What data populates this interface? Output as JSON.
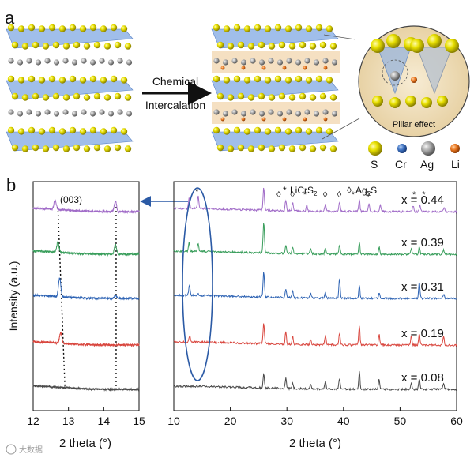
{
  "panel_a": {
    "label": "a",
    "arrow_text_line1": "Chemical",
    "arrow_text_line2": "Intercalation",
    "inset_text": "Pillar effect",
    "legend": [
      {
        "symbol": "S",
        "color": "#e8e000"
      },
      {
        "symbol": "Cr",
        "color": "#3f73c2"
      },
      {
        "symbol": "Ag",
        "color": "#a8a8a8"
      },
      {
        "symbol": "Li",
        "color": "#e8741c"
      }
    ],
    "colors": {
      "sulfur": "#e8e000",
      "chromium_slab": "#8fb3e6",
      "silver": "#a8a8a8",
      "lithium": "#e8741c",
      "inset_bg": "#f1e2c4"
    }
  },
  "panel_b": {
    "label": "b",
    "watermark": "大数据"
  },
  "chart_data": [
    {
      "type": "line",
      "title": "",
      "xlabel": "2 theta (°)",
      "ylabel": "Intensity (a.u.)",
      "xlim": [
        12,
        15
      ],
      "xticks": [
        "12",
        "13",
        "14",
        "15"
      ],
      "annotations": [
        {
          "text": "(003)",
          "x": 12.6
        }
      ],
      "dotted_lines_x": [
        12.7,
        14.35
      ],
      "series": [
        {
          "name": "x = 0.44",
          "color": "#a16cc8",
          "peaks": [
            {
              "x": 12.62,
              "h": 0.5
            },
            {
              "x": 14.33,
              "h": 0.55
            }
          ]
        },
        {
          "name": "x = 0.39",
          "color": "#3a9e5c",
          "peaks": [
            {
              "x": 12.7,
              "h": 0.55
            },
            {
              "x": 14.33,
              "h": 0.5
            }
          ]
        },
        {
          "name": "x = 0.31",
          "color": "#2f64b4",
          "peaks": [
            {
              "x": 12.75,
              "h": 1.0
            },
            {
              "x": 14.33,
              "h": 0.15
            }
          ]
        },
        {
          "name": "x = 0.19",
          "color": "#d9473f",
          "peaks": [
            {
              "x": 12.78,
              "h": 0.55
            }
          ]
        },
        {
          "name": "x = 0.08",
          "color": "#4a4a4a",
          "peaks": []
        }
      ]
    },
    {
      "type": "line",
      "title": "",
      "xlabel": "2 theta (°)",
      "ylabel": "",
      "xlim": [
        10,
        60
      ],
      "xticks": [
        "10",
        "20",
        "30",
        "40",
        "50",
        "60"
      ],
      "legend_markers": [
        {
          "marker": "*",
          "label": "LiCrS",
          "subscript": "2"
        },
        {
          "marker": "◊",
          "label": "Ag",
          "subscript": "2",
          "suffix": "S"
        }
      ],
      "series": [
        {
          "name": "x = 0.44",
          "color": "#a16cc8",
          "peaks": [
            {
              "x": 12.7,
              "h": 0.5
            },
            {
              "x": 14.3,
              "h": 0.6
            },
            {
              "x": 25.9,
              "h": 1.1
            },
            {
              "x": 29.8,
              "h": 0.5
            },
            {
              "x": 31.0,
              "h": 0.4
            },
            {
              "x": 33.5,
              "h": 0.3
            },
            {
              "x": 36.8,
              "h": 0.35
            },
            {
              "x": 39.3,
              "h": 0.45
            },
            {
              "x": 42.8,
              "h": 0.55
            },
            {
              "x": 44.5,
              "h": 0.35
            },
            {
              "x": 46.5,
              "h": 0.3
            },
            {
              "x": 52.3,
              "h": 0.3
            },
            {
              "x": 53.5,
              "h": 0.35
            },
            {
              "x": 57.8,
              "h": 0.2
            }
          ],
          "markers": [
            {
              "x": 14.2,
              "m": "*"
            },
            {
              "x": 28.6,
              "m": "◊"
            },
            {
              "x": 31.0,
              "m": "◊"
            },
            {
              "x": 33.3,
              "m": "*"
            },
            {
              "x": 36.8,
              "m": "◊"
            },
            {
              "x": 39.3,
              "m": "◊"
            },
            {
              "x": 41.8,
              "m": "*"
            },
            {
              "x": 44.3,
              "m": "◊"
            },
            {
              "x": 52.6,
              "m": "*"
            },
            {
              "x": 54.3,
              "m": "*"
            }
          ]
        },
        {
          "name": "x = 0.39",
          "color": "#3a9e5c",
          "peaks": [
            {
              "x": 12.7,
              "h": 0.45
            },
            {
              "x": 14.3,
              "h": 0.4
            },
            {
              "x": 25.9,
              "h": 1.5
            },
            {
              "x": 29.8,
              "h": 0.4
            },
            {
              "x": 31.0,
              "h": 0.35
            },
            {
              "x": 34.2,
              "h": 0.25
            },
            {
              "x": 36.8,
              "h": 0.3
            },
            {
              "x": 39.3,
              "h": 0.45
            },
            {
              "x": 42.8,
              "h": 0.55
            },
            {
              "x": 46.3,
              "h": 0.35
            },
            {
              "x": 52.0,
              "h": 0.3
            },
            {
              "x": 53.4,
              "h": 0.4
            },
            {
              "x": 57.7,
              "h": 0.2
            }
          ]
        },
        {
          "name": "x = 0.31",
          "color": "#2f64b4",
          "peaks": [
            {
              "x": 12.75,
              "h": 0.55
            },
            {
              "x": 14.3,
              "h": 0.1
            },
            {
              "x": 25.9,
              "h": 1.3
            },
            {
              "x": 29.8,
              "h": 0.4
            },
            {
              "x": 31.0,
              "h": 0.35
            },
            {
              "x": 34.2,
              "h": 0.2
            },
            {
              "x": 36.8,
              "h": 0.25
            },
            {
              "x": 39.3,
              "h": 1.0
            },
            {
              "x": 42.8,
              "h": 0.6
            },
            {
              "x": 46.3,
              "h": 0.3
            },
            {
              "x": 53.4,
              "h": 0.8
            },
            {
              "x": 57.7,
              "h": 0.2
            }
          ]
        },
        {
          "name": "x = 0.19",
          "color": "#d9473f",
          "peaks": [
            {
              "x": 12.8,
              "h": 0.3
            },
            {
              "x": 25.9,
              "h": 1.0
            },
            {
              "x": 29.8,
              "h": 0.6
            },
            {
              "x": 31.0,
              "h": 0.4
            },
            {
              "x": 34.2,
              "h": 0.25
            },
            {
              "x": 36.8,
              "h": 0.45
            },
            {
              "x": 39.3,
              "h": 0.6
            },
            {
              "x": 42.8,
              "h": 0.9
            },
            {
              "x": 46.3,
              "h": 0.55
            },
            {
              "x": 52.0,
              "h": 0.45
            },
            {
              "x": 53.4,
              "h": 0.6
            },
            {
              "x": 57.7,
              "h": 0.4
            }
          ]
        },
        {
          "name": "x = 0.08",
          "color": "#4a4a4a",
          "peaks": [
            {
              "x": 25.9,
              "h": 0.7
            },
            {
              "x": 29.8,
              "h": 0.5
            },
            {
              "x": 31.0,
              "h": 0.3
            },
            {
              "x": 34.2,
              "h": 0.2
            },
            {
              "x": 36.8,
              "h": 0.35
            },
            {
              "x": 39.3,
              "h": 0.55
            },
            {
              "x": 42.8,
              "h": 0.85
            },
            {
              "x": 46.3,
              "h": 0.5
            },
            {
              "x": 52.0,
              "h": 0.35
            },
            {
              "x": 53.4,
              "h": 0.5
            },
            {
              "x": 57.7,
              "h": 0.3
            }
          ]
        }
      ]
    }
  ]
}
